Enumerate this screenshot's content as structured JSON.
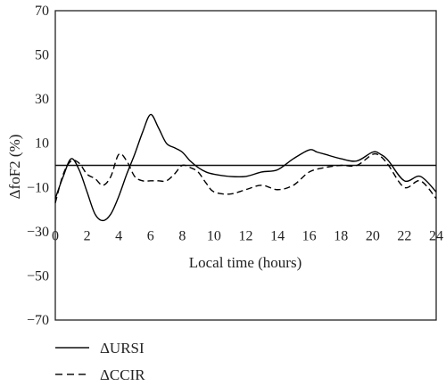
{
  "chart_data": {
    "type": "line",
    "title": "",
    "xlabel": "Local time (hours)",
    "ylabel": "ΔfoF2 (%)",
    "xlim": [
      0,
      24
    ],
    "ylim": [
      -70,
      70
    ],
    "x_ticks": [
      0,
      2,
      4,
      6,
      8,
      10,
      12,
      14,
      16,
      18,
      20,
      22,
      24
    ],
    "y_ticks": [
      70,
      50,
      30,
      10,
      -10,
      -30,
      -50,
      -70
    ],
    "grid": false,
    "reference_line_y": 0,
    "legend_position": "bottom-left",
    "series": [
      {
        "name": "ΔURSI",
        "style": "solid",
        "color": "#000000",
        "x": [
          0,
          0.5,
          1,
          1.5,
          2,
          2.5,
          3,
          3.5,
          4,
          4.5,
          5,
          5.5,
          6,
          6.5,
          7,
          7.5,
          8,
          8.5,
          9,
          9.5,
          10,
          11,
          12,
          13,
          14,
          15,
          16,
          16.5,
          17,
          18,
          19,
          20,
          20.5,
          21,
          22,
          23,
          24
        ],
        "y": [
          -15,
          -5,
          3,
          -2,
          -12,
          -22,
          -25,
          -22,
          -14,
          -4,
          5,
          15,
          23,
          17,
          10,
          8,
          6,
          2,
          -1,
          -3,
          -4,
          -5,
          -5,
          -3,
          -2,
          3,
          7,
          6,
          5,
          3,
          2,
          6,
          5,
          2,
          -7,
          -5,
          -12
        ]
      },
      {
        "name": "ΔCCIR",
        "style": "dashed",
        "color": "#000000",
        "x": [
          0,
          0.5,
          1,
          1.5,
          2,
          2.5,
          3,
          3.5,
          4,
          4.5,
          5,
          5.5,
          6,
          6.5,
          7,
          7.5,
          8,
          8.5,
          9,
          9.5,
          10,
          11,
          12,
          13,
          14,
          15,
          16,
          17,
          18,
          19,
          20,
          20.5,
          21,
          22,
          23,
          24
        ],
        "y": [
          -17,
          -4,
          2,
          1,
          -4,
          -6,
          -9,
          -5,
          5,
          2,
          -5,
          -7,
          -7,
          -7,
          -7,
          -4,
          0,
          -1,
          -3,
          -8,
          -12,
          -13,
          -11,
          -9,
          -11,
          -9,
          -3,
          -1,
          0,
          0,
          5,
          4,
          0,
          -10,
          -7,
          -15
        ]
      }
    ]
  }
}
